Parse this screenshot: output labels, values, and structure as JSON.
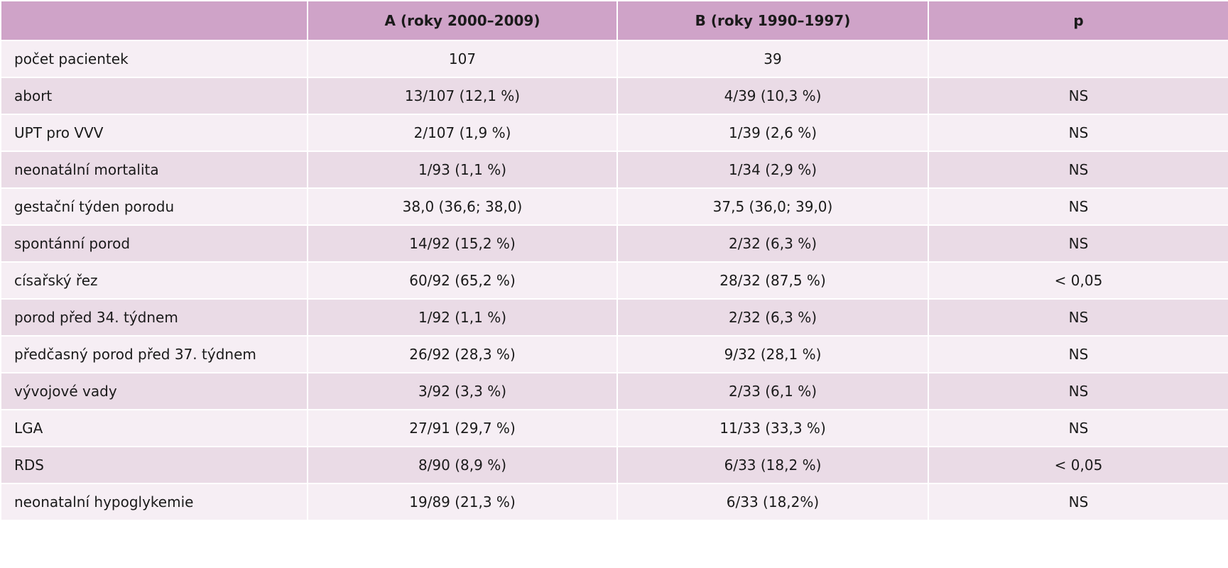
{
  "table": {
    "headers": [
      "",
      "A (roky 2000–2009)",
      "B (roky 1990–1997)",
      "p"
    ],
    "rows": [
      [
        "počet pacientek",
        "107",
        "39",
        ""
      ],
      [
        "abort",
        "13/107 (12,1 %)",
        "4/39 (10,3 %)",
        "NS"
      ],
      [
        "UPT pro VVV",
        "2/107 (1,9 %)",
        "1/39 (2,6 %)",
        "NS"
      ],
      [
        "neonatální mortalita",
        "1/93 (1,1 %)",
        "1/34 (2,9 %)",
        "NS"
      ],
      [
        "gestační týden porodu",
        "38,0 (36,6; 38,0)",
        "37,5 (36,0; 39,0)",
        "NS"
      ],
      [
        "spontánní porod",
        "14/92 (15,2 %)",
        "2/32 (6,3 %)",
        "NS"
      ],
      [
        "císařský řez",
        "60/92 (65,2 %)",
        "28/32 (87,5 %)",
        "< 0,05"
      ],
      [
        "porod před 34. týdnem",
        "1/92 (1,1 %)",
        "2/32 (6,3 %)",
        "NS"
      ],
      [
        "předčasný porod před 37. týdnem",
        "26/92 (28,3 %)",
        "9/32 (28,1 %)",
        "NS"
      ],
      [
        "vývojové vady",
        "3/92 (3,3 %)",
        "2/33 (6,1 %)",
        "NS"
      ],
      [
        "LGA",
        "27/91 (29,7 %)",
        "11/33 (33,3 %)",
        "NS"
      ],
      [
        "RDS",
        "8/90 (8,9 %)",
        "6/33 (18,2 %)",
        "< 0,05"
      ],
      [
        "neonatalní hypoglykemie",
        "19/89 (21,3 %)",
        "6/33 (18,2%)",
        "NS"
      ]
    ]
  },
  "colors": {
    "header_bg": "#cfa3c8",
    "row_light": "#f6eef4",
    "row_dark": "#eadbe6"
  }
}
